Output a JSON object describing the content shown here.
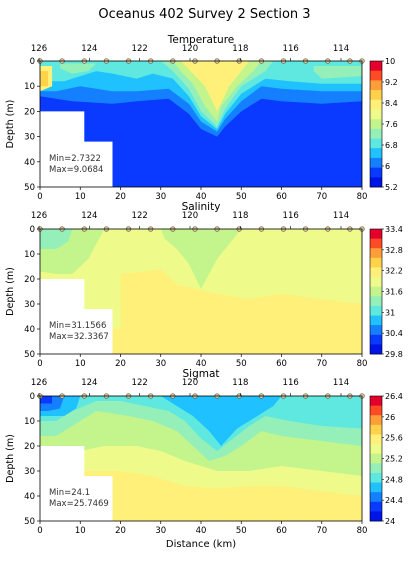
{
  "title": "Oceanus 402 Survey 2 Section 3",
  "chart_data": [
    {
      "type": "heatmap",
      "title": "Temperature",
      "xlabel": "",
      "ylabel": "Depth (m)",
      "top_axis_ticks": [
        "126",
        "124",
        "122",
        "120",
        "118",
        "116",
        "114"
      ],
      "x_ticks": [
        0,
        10,
        20,
        30,
        40,
        50,
        60,
        70,
        80
      ],
      "y_ticks": [
        0,
        10,
        20,
        30,
        40,
        50
      ],
      "xlim": [
        0,
        80
      ],
      "ylim": [
        0,
        50
      ],
      "colorbar_ticks": [
        "10",
        "9.2",
        "8.4",
        "7.6",
        "6.8",
        "6",
        "5.2"
      ],
      "colorbar_range": [
        5.2,
        10
      ],
      "annotation": [
        "Min=2.7322",
        "Max=9.0684"
      ]
    },
    {
      "type": "heatmap",
      "title": "Salinity",
      "xlabel": "",
      "ylabel": "Depth (m)",
      "top_axis_ticks": [
        "126",
        "124",
        "122",
        "120",
        "118",
        "116",
        "114"
      ],
      "x_ticks": [
        0,
        10,
        20,
        30,
        40,
        50,
        60,
        70,
        80
      ],
      "y_ticks": [
        0,
        10,
        20,
        30,
        40,
        50
      ],
      "xlim": [
        0,
        80
      ],
      "ylim": [
        0,
        50
      ],
      "colorbar_ticks": [
        "33.4",
        "32.8",
        "32.2",
        "31.6",
        "31",
        "30.4",
        "29.8"
      ],
      "colorbar_range": [
        29.8,
        33.4
      ],
      "annotation": [
        "Min=31.1566",
        "Max=32.3367"
      ]
    },
    {
      "type": "heatmap",
      "title": "Sigmat",
      "xlabel": "Distance (km)",
      "ylabel": "Depth (m)",
      "top_axis_ticks": [
        "126",
        "124",
        "122",
        "120",
        "118",
        "116",
        "114"
      ],
      "x_ticks": [
        0,
        10,
        20,
        30,
        40,
        50,
        60,
        70,
        80
      ],
      "y_ticks": [
        0,
        10,
        20,
        30,
        40,
        50
      ],
      "xlim": [
        0,
        80
      ],
      "ylim": [
        0,
        50
      ],
      "colorbar_ticks": [
        "26.4",
        "26",
        "25.6",
        "25.2",
        "24.8",
        "24.4",
        "24"
      ],
      "colorbar_range": [
        24,
        26.4
      ],
      "annotation": [
        "Min=24.1",
        "Max=25.7469"
      ]
    }
  ]
}
